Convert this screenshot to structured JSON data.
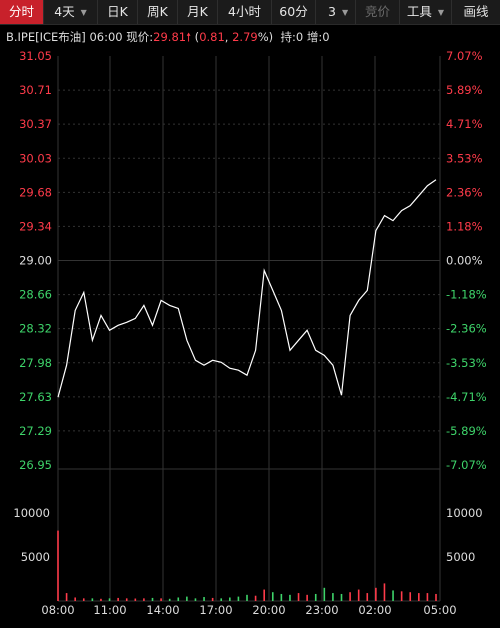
{
  "toolbar": {
    "tabs": [
      {
        "label": "分时"
      },
      {
        "label": "4天"
      },
      {
        "label": "日K"
      },
      {
        "label": "周K"
      },
      {
        "label": "月K"
      },
      {
        "label": "4小时"
      },
      {
        "label": "60分"
      },
      {
        "label": "3"
      },
      {
        "label": "竞价"
      },
      {
        "label": "工具"
      },
      {
        "label": "画线"
      }
    ]
  },
  "info": {
    "symbol": "B.IPE[ICE布油]",
    "time": "06:00",
    "price_label": "现价:",
    "price": "29.81",
    "change": "0.81",
    "change_pct": "2.79",
    "percent_sign": "%",
    "holding_label": "持:",
    "holding": "0",
    "increase_label": "增:",
    "increase": "0"
  },
  "axes": {
    "price_ticks": [
      "31.05",
      "30.71",
      "30.37",
      "30.03",
      "29.68",
      "29.34",
      "29.00",
      "28.66",
      "28.32",
      "27.98",
      "27.63",
      "27.29",
      "26.95"
    ],
    "pct_ticks": [
      "7.07%",
      "5.89%",
      "4.71%",
      "3.53%",
      "2.36%",
      "1.18%",
      "0.00%",
      "-1.18%",
      "-2.36%",
      "-3.53%",
      "-4.71%",
      "-5.89%",
      "-7.07%"
    ],
    "volume_ticks": [
      "10000",
      "5000"
    ],
    "time_ticks": [
      "08:00",
      "11:00",
      "14:00",
      "17:00",
      "20:00",
      "23:00",
      "02:00",
      "05:00"
    ]
  },
  "colors": {
    "up": "#ff3b4a",
    "down": "#3ed46a",
    "neutral": "#dddddd",
    "line": "#ffffff",
    "grid": "#333333",
    "active_tab": "#c8212b"
  },
  "chart_data": {
    "type": "line",
    "x": [
      "08:00",
      "08:30",
      "09:00",
      "09:30",
      "10:00",
      "10:30",
      "11:00",
      "11:30",
      "12:00",
      "12:30",
      "13:00",
      "13:30",
      "14:00",
      "14:30",
      "15:00",
      "15:30",
      "16:00",
      "16:30",
      "17:00",
      "17:30",
      "18:00",
      "18:30",
      "19:00",
      "19:30",
      "20:00",
      "20:30",
      "21:00",
      "21:30",
      "22:00",
      "22:30",
      "23:00",
      "23:30",
      "00:00",
      "00:30",
      "01:00",
      "01:30",
      "02:00",
      "02:30",
      "03:00",
      "03:30",
      "04:00",
      "04:30",
      "05:00",
      "05:30",
      "06:00"
    ],
    "price": [
      27.63,
      27.95,
      28.5,
      28.68,
      28.2,
      28.45,
      28.3,
      28.35,
      28.38,
      28.42,
      28.55,
      28.35,
      28.6,
      28.55,
      28.52,
      28.2,
      28.0,
      27.95,
      28.0,
      27.98,
      27.92,
      27.9,
      27.85,
      28.1,
      28.9,
      28.7,
      28.5,
      28.1,
      28.2,
      28.3,
      28.1,
      28.05,
      27.95,
      27.65,
      28.45,
      28.6,
      28.7,
      29.3,
      29.45,
      29.4,
      29.5,
      29.55,
      29.65,
      29.75,
      29.81
    ],
    "volume": [
      8000,
      900,
      400,
      300,
      300,
      250,
      300,
      350,
      300,
      280,
      300,
      350,
      300,
      250,
      400,
      500,
      300,
      450,
      350,
      300,
      400,
      500,
      700,
      600,
      1300,
      1000,
      800,
      700,
      900,
      700,
      800,
      1500,
      900,
      800,
      1000,
      1300,
      900,
      1500,
      2000,
      1200,
      1100,
      1000,
      900,
      900,
      800
    ],
    "prev_close": 29.0,
    "price_range": [
      26.95,
      31.05
    ],
    "volume_range": [
      0,
      15000
    ]
  }
}
